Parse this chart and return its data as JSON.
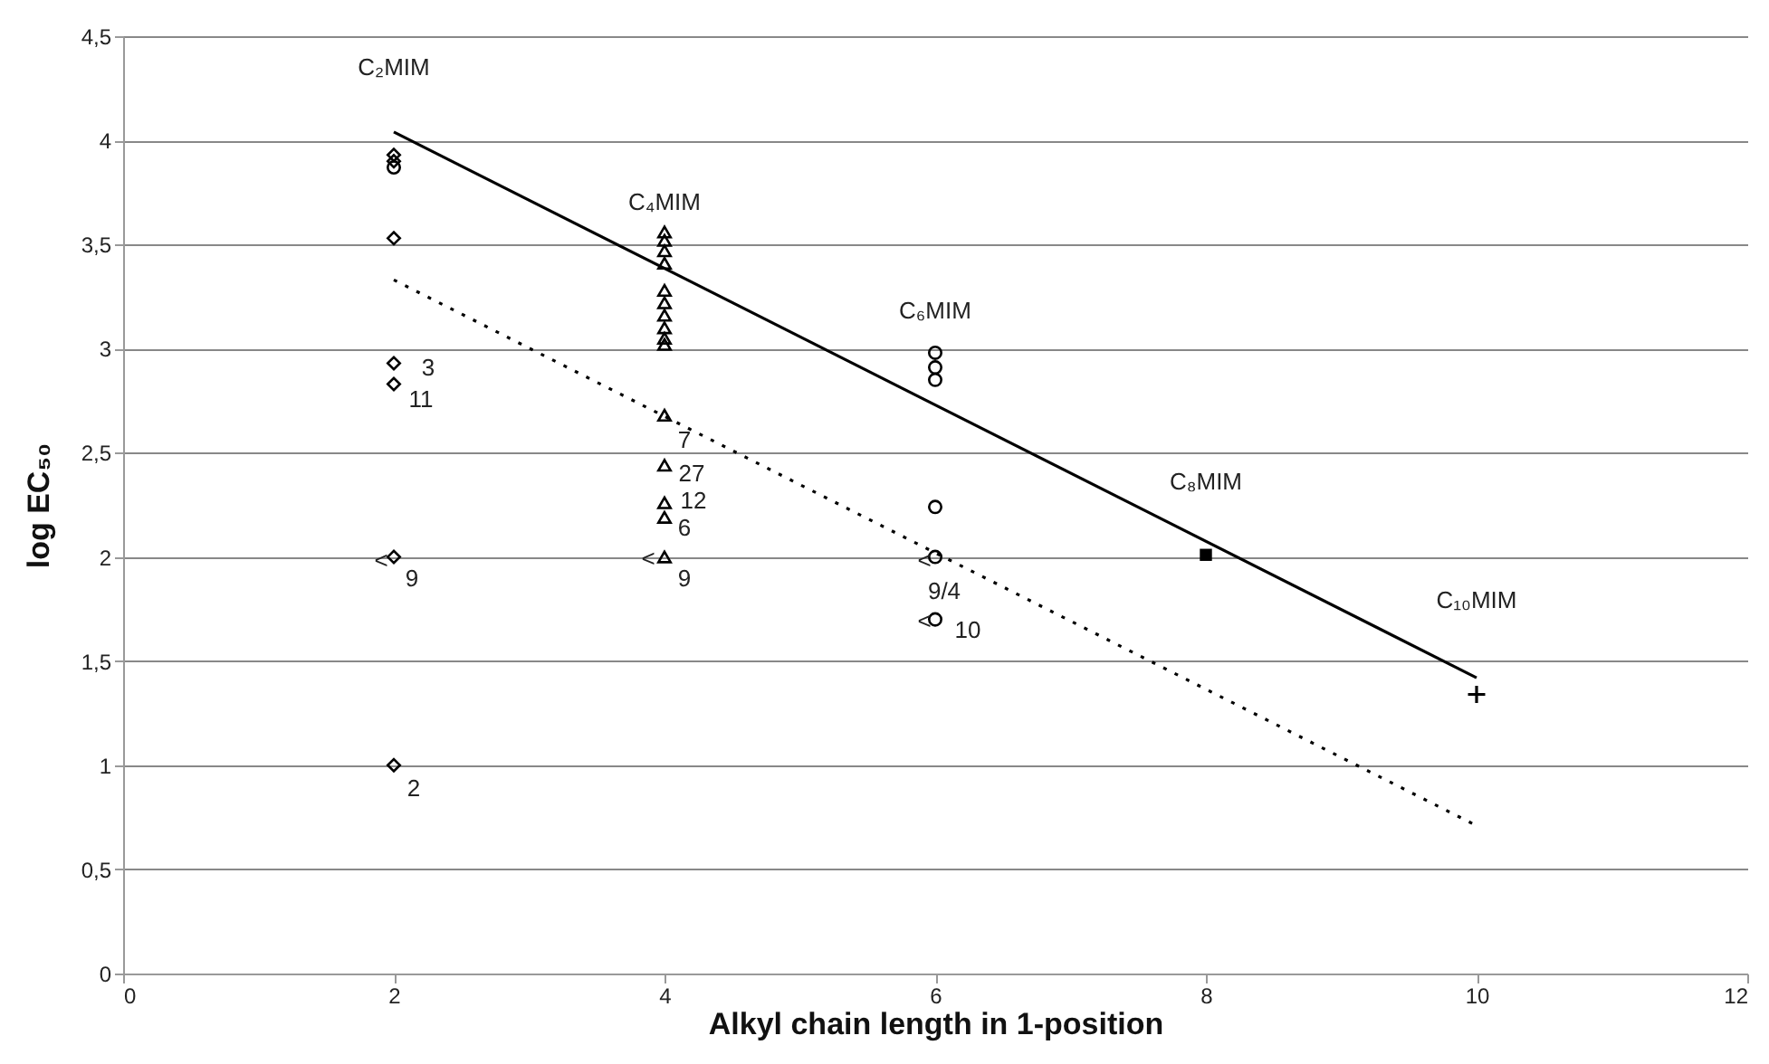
{
  "chart_data": {
    "type": "scatter",
    "xlabel": "Alkyl chain length in 1-position",
    "ylabel": "log EC₅₀",
    "xlim": [
      0,
      12
    ],
    "xticks": [
      0,
      2,
      4,
      6,
      8,
      10,
      12
    ],
    "ylim": [
      0,
      4.5
    ],
    "yticks": [
      0,
      {
        "value": 0.5,
        "label": "0,5"
      },
      1,
      {
        "value": 1.5,
        "label": "1,5"
      },
      2,
      {
        "value": 2.5,
        "label": "2,5"
      },
      3,
      {
        "value": 3.5,
        "label": "3,5"
      },
      4,
      {
        "value": 4.5,
        "label": "4,5"
      }
    ],
    "grid": "y",
    "series": [
      {
        "marker": "diamond",
        "color": "#000000",
        "x": [
          2,
          2,
          2,
          2,
          2,
          2,
          2
        ],
        "values": [
          3.93,
          3.9,
          3.53,
          2.93,
          2.83,
          2.0,
          1.0
        ]
      },
      {
        "marker": "circle",
        "color": "#000000",
        "x": [
          2,
          6,
          6,
          6,
          6,
          6,
          6
        ],
        "values": [
          3.87,
          2.98,
          2.91,
          2.85,
          2.24,
          2.0,
          1.7
        ]
      },
      {
        "marker": "triangle",
        "color": "#000000",
        "x": [
          4,
          4,
          4,
          4,
          4,
          4,
          4,
          4,
          4,
          4,
          4,
          4,
          4,
          4,
          4
        ],
        "values": [
          3.56,
          3.52,
          3.47,
          3.41,
          3.28,
          3.22,
          3.16,
          3.1,
          3.05,
          3.02,
          2.68,
          2.44,
          2.26,
          2.19,
          2.0
        ]
      },
      {
        "marker": "square",
        "color": "#000000",
        "x": [
          8
        ],
        "values": [
          2.01
        ]
      },
      {
        "marker": "cross",
        "color": "#000000",
        "x": [
          10
        ],
        "values": [
          1.34
        ]
      },
      {
        "type": "line",
        "line_style": "solid",
        "color": "#000000",
        "x": [
          2,
          10
        ],
        "values": [
          4.04,
          1.42
        ]
      },
      {
        "type": "line",
        "line_style": "dotted",
        "color": "#000000",
        "x": [
          2,
          10
        ],
        "values": [
          3.33,
          0.71
        ]
      }
    ],
    "annotations": [
      "C₂MIM",
      "C₄MIM",
      "C₆MIM",
      "C₈MIM",
      "C₁₀MIM",
      {
        "text": "3",
        "x": 2,
        "y": 2.93
      },
      {
        "text": "11",
        "x": 2,
        "y": 2.83
      },
      {
        "text": "<",
        "x": 2,
        "y": 2.0
      },
      {
        "text": "9",
        "x": 2,
        "y": 2.0
      },
      {
        "text": "2",
        "x": 2,
        "y": 1.0
      },
      {
        "text": "7",
        "x": 4,
        "y": 2.68
      },
      {
        "text": "27",
        "x": 4,
        "y": 2.44
      },
      {
        "text": "12",
        "x": 4,
        "y": 2.26
      },
      {
        "text": "6",
        "x": 4,
        "y": 2.19
      },
      {
        "text": "<",
        "x": 4,
        "y": 2.0
      },
      {
        "text": "9",
        "x": 4,
        "y": 2.0
      },
      {
        "text": "<",
        "x": 6,
        "y": 2.0
      },
      {
        "text": "9/4",
        "x": 6,
        "y": 2.0
      },
      {
        "text": "<",
        "x": 6,
        "y": 1.7
      },
      {
        "text": "10",
        "x": 6,
        "y": 1.7
      }
    ]
  }
}
